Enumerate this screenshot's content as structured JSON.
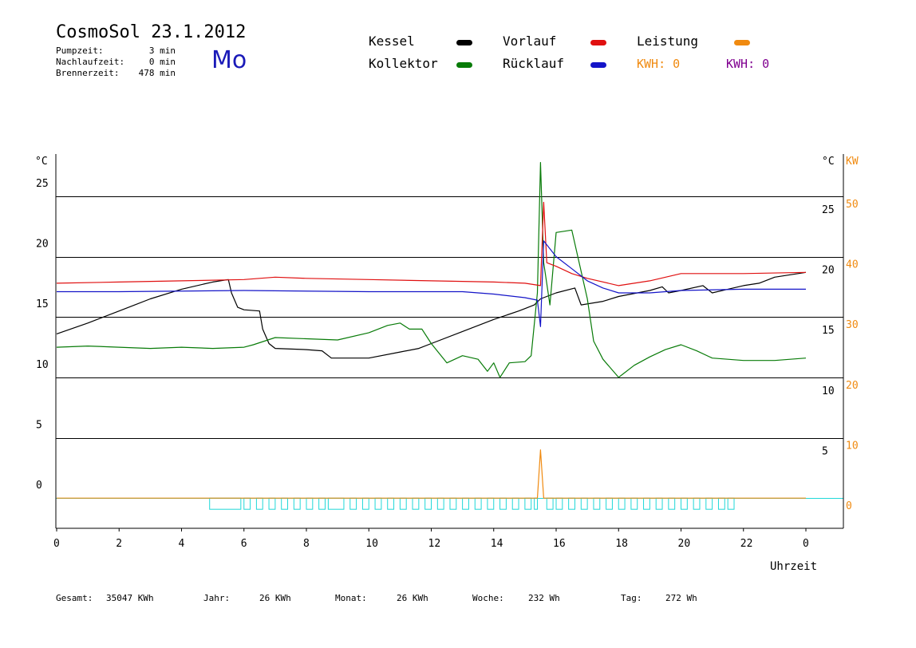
{
  "header": {
    "title": "CosmoSol 23.1.2012",
    "day": "Mo",
    "info": [
      {
        "label": "Pumpzeit:",
        "value": "3 min"
      },
      {
        "label": "Nachlaufzeit:",
        "value": "0 min"
      },
      {
        "label": "Brennerzeit:",
        "value": "478 min"
      }
    ]
  },
  "legend": {
    "kessel": "Kessel",
    "kollektor": "Kollektor",
    "vorlauf": "Vorlauf",
    "ruecklauf": "Rücklauf",
    "leistung": "Leistung",
    "kwh1": "KWH: 0",
    "kwh2": "KWH: 0"
  },
  "colors": {
    "kessel": "#000000",
    "kollektor": "#087b08",
    "vorlauf": "#e01010",
    "ruecklauf": "#1414c8",
    "leistung": "#f08a10",
    "kwh2": "#800090",
    "pump": "#20d8d8"
  },
  "footer": {
    "gesamt_label": "Gesamt:",
    "gesamt_value": "35047 KWh",
    "jahr_label": "Jahr:",
    "jahr_value": "26 KWh",
    "monat_label": "Monat:",
    "monat_value": "26 KWh",
    "woche_label": "Woche:",
    "woche_value": "232 Wh",
    "tag_label": "Tag:",
    "tag_value": "272 Wh"
  },
  "chart_data": {
    "type": "line",
    "xlabel": "Uhrzeit",
    "x_ticks": [
      "0",
      "2",
      "4",
      "6",
      "8",
      "10",
      "12",
      "14",
      "16",
      "18",
      "20",
      "22",
      "0"
    ],
    "xlim": [
      0,
      24
    ],
    "y_left_label": "°C",
    "y_right_label": "°C",
    "y_right2_label": "KW",
    "ylim": [
      -2.5,
      28.5
    ],
    "y_left_ticks": [
      "25",
      "20",
      "15",
      "10",
      "5",
      "0"
    ],
    "y_right_ticks": [
      "25",
      "20",
      "15",
      "10",
      "5"
    ],
    "y_kw_ticks": [
      "50",
      "40",
      "30",
      "20",
      "10",
      "0"
    ],
    "grid_y": [
      0,
      5,
      10,
      15,
      20,
      25
    ],
    "series": [
      {
        "name": "Kessel",
        "key": "kessel",
        "points": [
          [
            0,
            13.6
          ],
          [
            1,
            14.5
          ],
          [
            2,
            15.5
          ],
          [
            3,
            16.5
          ],
          [
            4,
            17.3
          ],
          [
            5,
            17.9
          ],
          [
            5.5,
            18.1
          ],
          [
            5.6,
            17
          ],
          [
            5.8,
            15.8
          ],
          [
            6,
            15.6
          ],
          [
            6.5,
            15.5
          ],
          [
            6.6,
            14
          ],
          [
            6.8,
            12.8
          ],
          [
            7,
            12.4
          ],
          [
            8,
            12.3
          ],
          [
            8.5,
            12.2
          ],
          [
            8.8,
            11.6
          ],
          [
            10,
            11.6
          ],
          [
            11,
            12.1
          ],
          [
            11.6,
            12.4
          ],
          [
            12,
            12.8
          ],
          [
            13,
            13.8
          ],
          [
            14,
            14.8
          ],
          [
            14.8,
            15.5
          ],
          [
            15,
            15.7
          ],
          [
            15.3,
            16
          ],
          [
            15.5,
            16.5
          ],
          [
            16,
            17
          ],
          [
            16.6,
            17.4
          ],
          [
            16.8,
            16
          ],
          [
            17.5,
            16.3
          ],
          [
            18,
            16.7
          ],
          [
            19,
            17.2
          ],
          [
            19.4,
            17.5
          ],
          [
            19.6,
            17
          ],
          [
            20,
            17.2
          ],
          [
            20.7,
            17.6
          ],
          [
            21,
            17
          ],
          [
            21.5,
            17.3
          ],
          [
            22,
            17.6
          ],
          [
            22.5,
            17.8
          ],
          [
            23,
            18.3
          ],
          [
            24,
            18.7
          ]
        ]
      },
      {
        "name": "Kollektor",
        "key": "kollektor",
        "points": [
          [
            0,
            12.5
          ],
          [
            1,
            12.6
          ],
          [
            2,
            12.5
          ],
          [
            3,
            12.4
          ],
          [
            4,
            12.5
          ],
          [
            5,
            12.4
          ],
          [
            6,
            12.5
          ],
          [
            6.3,
            12.7
          ],
          [
            7,
            13.3
          ],
          [
            8,
            13.2
          ],
          [
            9,
            13.1
          ],
          [
            10,
            13.7
          ],
          [
            10.6,
            14.3
          ],
          [
            11,
            14.5
          ],
          [
            11.3,
            14
          ],
          [
            11.7,
            14
          ],
          [
            12,
            12.8
          ],
          [
            12.5,
            11.2
          ],
          [
            13,
            11.8
          ],
          [
            13.5,
            11.5
          ],
          [
            13.8,
            10.5
          ],
          [
            14,
            11.2
          ],
          [
            14.2,
            10
          ],
          [
            14.5,
            11.2
          ],
          [
            15,
            11.3
          ],
          [
            15.2,
            11.8
          ],
          [
            15.4,
            17
          ],
          [
            15.5,
            27.8
          ],
          [
            15.6,
            19.5
          ],
          [
            15.8,
            16
          ],
          [
            16,
            22
          ],
          [
            16.5,
            22.2
          ],
          [
            17,
            16.5
          ],
          [
            17.2,
            13
          ],
          [
            17.5,
            11.5
          ],
          [
            18,
            10
          ],
          [
            18.5,
            11
          ],
          [
            19,
            11.7
          ],
          [
            19.5,
            12.3
          ],
          [
            20,
            12.7
          ],
          [
            20.5,
            12.2
          ],
          [
            21,
            11.6
          ],
          [
            22,
            11.4
          ],
          [
            23,
            11.4
          ],
          [
            24,
            11.6
          ]
        ]
      },
      {
        "name": "Vorlauf",
        "key": "vorlauf",
        "points": [
          [
            0,
            17.8
          ],
          [
            2,
            17.9
          ],
          [
            4,
            18
          ],
          [
            6,
            18.1
          ],
          [
            7,
            18.3
          ],
          [
            8,
            18.2
          ],
          [
            10,
            18.1
          ],
          [
            12,
            18
          ],
          [
            14,
            17.9
          ],
          [
            15,
            17.8
          ],
          [
            15.5,
            17.6
          ],
          [
            15.6,
            24.5
          ],
          [
            15.7,
            19.5
          ],
          [
            16,
            19.2
          ],
          [
            16.5,
            18.6
          ],
          [
            17,
            18.2
          ],
          [
            18,
            17.6
          ],
          [
            19,
            18
          ],
          [
            20,
            18.6
          ],
          [
            22,
            18.6
          ],
          [
            24,
            18.7
          ]
        ]
      },
      {
        "name": "Rücklauf",
        "key": "ruecklauf",
        "points": [
          [
            0,
            17.1
          ],
          [
            2,
            17.1
          ],
          [
            6,
            17.2
          ],
          [
            10,
            17.1
          ],
          [
            13,
            17.1
          ],
          [
            14,
            16.9
          ],
          [
            15,
            16.6
          ],
          [
            15.4,
            16.4
          ],
          [
            15.5,
            14.2
          ],
          [
            15.6,
            21.3
          ],
          [
            16,
            20
          ],
          [
            16.5,
            19
          ],
          [
            17,
            18
          ],
          [
            17.5,
            17.4
          ],
          [
            18,
            17
          ],
          [
            19,
            17
          ],
          [
            20,
            17.2
          ],
          [
            22,
            17.3
          ],
          [
            24,
            17.3
          ]
        ]
      },
      {
        "name": "Leistung",
        "key": "leistung",
        "points": [
          [
            0,
            0
          ],
          [
            15.4,
            0
          ],
          [
            15.5,
            4
          ],
          [
            15.6,
            0
          ],
          [
            24,
            0
          ]
        ]
      }
    ],
    "pump_pulses": [
      [
        4.9,
        5.9
      ],
      [
        6.0,
        6.2
      ],
      [
        6.4,
        6.6
      ],
      [
        6.8,
        7.0
      ],
      [
        7.2,
        7.4
      ],
      [
        7.6,
        7.8
      ],
      [
        8.0,
        8.2
      ],
      [
        8.4,
        8.6
      ],
      [
        8.7,
        9.2
      ],
      [
        9.4,
        9.6
      ],
      [
        9.8,
        10.0
      ],
      [
        10.2,
        10.4
      ],
      [
        10.6,
        10.8
      ],
      [
        11.0,
        11.2
      ],
      [
        11.4,
        11.6
      ],
      [
        11.8,
        12.0
      ],
      [
        12.2,
        12.4
      ],
      [
        12.6,
        12.8
      ],
      [
        13.0,
        13.2
      ],
      [
        13.4,
        13.6
      ],
      [
        13.8,
        14.0
      ],
      [
        14.2,
        14.4
      ],
      [
        14.6,
        14.8
      ],
      [
        15.0,
        15.2
      ],
      [
        15.3,
        15.4
      ],
      [
        15.7,
        15.9
      ],
      [
        16.0,
        16.2
      ],
      [
        16.4,
        16.6
      ],
      [
        16.8,
        17.0
      ],
      [
        17.2,
        17.4
      ],
      [
        17.6,
        17.8
      ],
      [
        18.0,
        18.2
      ],
      [
        18.4,
        18.6
      ],
      [
        18.8,
        19.0
      ],
      [
        19.2,
        19.4
      ],
      [
        19.6,
        19.8
      ],
      [
        20.0,
        20.2
      ],
      [
        20.4,
        20.6
      ],
      [
        20.8,
        21.0
      ],
      [
        21.2,
        21.4
      ],
      [
        21.5,
        21.7
      ]
    ],
    "pump_color": "cyan"
  }
}
